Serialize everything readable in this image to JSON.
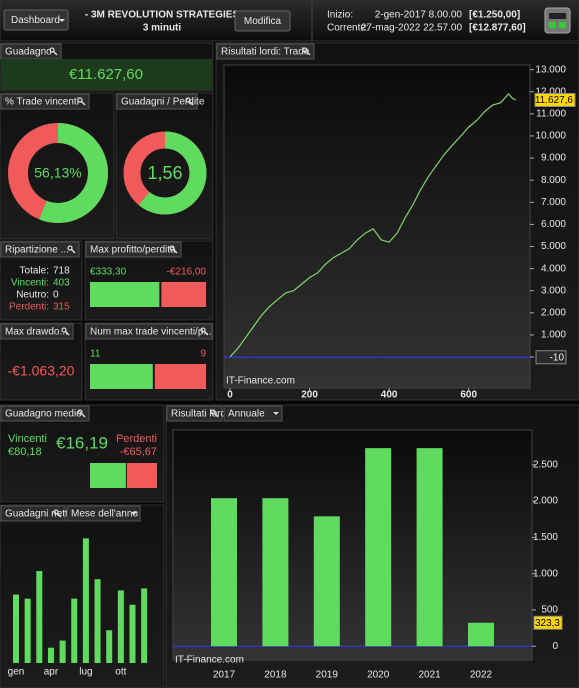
{
  "header": {
    "dashboard_button": "Dashboard",
    "strategy_name": "- 3M  REVOLUTION STRATEGIES",
    "timeframe": "3 minuti",
    "edit_button": "Modifica",
    "start_label": "Inizio:",
    "start_date": "2-gen-2017 8.00.00",
    "start_value": "[€1.250,00]",
    "current_label": "Corrente:",
    "current_date": "27-mag-2022 22.57.00",
    "current_value": "[€12.877,60]"
  },
  "widgets": {
    "gain": {
      "title": "Guadagno",
      "value": "€11.627,60"
    },
    "win_rate": {
      "title": "% Trade vincenti",
      "label": "56,13%",
      "value": 56.13
    },
    "profit_ratio": {
      "title": "Guadagni / Perdite",
      "label": "1,56",
      "value": 1.56
    },
    "breakdown": {
      "title": "Ripartizione ...",
      "rows": [
        [
          "Totale:",
          "718"
        ],
        [
          "Vincenti:",
          "403"
        ],
        [
          "Neutro:",
          "0"
        ],
        [
          "Perdenti:",
          "315"
        ]
      ]
    },
    "max_trade": {
      "title": "Max profitto/perdita",
      "win": 333.3,
      "win_label": "€333,30",
      "loss": -216,
      "loss_label": "-€216,00"
    },
    "drawdown": {
      "title": "Max drawdo...",
      "value": "-€1.063,20"
    },
    "streak": {
      "title": "Num max trade vincenti/p...",
      "win": 11,
      "loss": 9
    },
    "average": {
      "title": "Guadagno medio",
      "win_caption": "Vincenti",
      "win": 80.18,
      "win_label": "€80,18",
      "net": "€16,19",
      "loss_caption": "Perdenti",
      "loss": -65.67,
      "loss_label": "-€65,67"
    }
  },
  "chart_data": [
    {
      "type": "line",
      "title": "Risultati lordi: Trade",
      "watermark": "IT-Finance.com",
      "color": "#7fd66a",
      "x": [
        0,
        20,
        40,
        60,
        80,
        100,
        120,
        140,
        160,
        180,
        200,
        220,
        240,
        260,
        280,
        300,
        320,
        340,
        360,
        380,
        400,
        420,
        440,
        460,
        480,
        500,
        520,
        540,
        560,
        580,
        600,
        620,
        640,
        660,
        680,
        700,
        710,
        718
      ],
      "values": [
        0,
        400,
        900,
        1400,
        1900,
        2300,
        2600,
        2900,
        3000,
        3300,
        3600,
        3800,
        4200,
        4500,
        4700,
        4900,
        5300,
        5600,
        5800,
        5300,
        5200,
        5600,
        6300,
        6900,
        7600,
        8200,
        8700,
        9200,
        9600,
        10000,
        10400,
        10700,
        11100,
        11400,
        11500,
        11900,
        11700,
        11627.6
      ],
      "last_value_label": "11.627,6",
      "reference_line": -10,
      "xlim": [
        -15,
        754
      ],
      "xticks": [
        0,
        200,
        400,
        600
      ],
      "ylim": [
        -1400,
        13210
      ],
      "yticks": [
        0,
        {
          "value": 1000,
          "label": "1.000"
        },
        {
          "value": 2000,
          "label": "2.000"
        },
        {
          "value": 3000,
          "label": "3.000"
        },
        {
          "value": 4000,
          "label": "4.000"
        },
        {
          "value": 5000,
          "label": "5.000"
        },
        {
          "value": 6000,
          "label": "6.000"
        },
        {
          "value": 7000,
          "label": "7.000"
        },
        {
          "value": 8000,
          "label": "8.000"
        },
        {
          "value": 9000,
          "label": "9.000"
        },
        {
          "value": 10000,
          "label": "10.000"
        },
        {
          "value": 11000,
          "label": "11.000"
        },
        {
          "value": 12000,
          "label": "12.000"
        },
        {
          "value": 13000,
          "label": "13.000"
        }
      ]
    },
    {
      "type": "bar",
      "title": "Risultati lordi",
      "period": "Annuale",
      "watermark": "IT-Finance.com",
      "color": "#5fdc5f",
      "categories": [
        "2017",
        "2018",
        "2019",
        "2020",
        "2021",
        "2022"
      ],
      "values": [
        2040,
        2040,
        1790,
        2730,
        2730,
        323.3
      ],
      "value_labels": [
        null,
        null,
        null,
        null,
        null,
        "323,3"
      ],
      "ylim": [
        -190,
        2980
      ],
      "yticks": [
        0,
        500,
        {
          "value": 1000,
          "label": "1.000"
        },
        {
          "value": 1500,
          "label": "1.500"
        },
        {
          "value": 2000,
          "label": "2.000"
        },
        {
          "value": 2500,
          "label": "2.500"
        }
      ]
    },
    {
      "type": "bar",
      "title": "Guadagni netti",
      "period": "Mese dell'anno",
      "color": "#5fdc5f",
      "categories": [
        "gen",
        null,
        null,
        "apr",
        null,
        null,
        "lug",
        null,
        null,
        "ott",
        null,
        null
      ],
      "values": [
        1029,
        968,
        1382,
        230,
        338,
        968,
        1874,
        1260,
        492,
        1091,
        876,
        1121
      ],
      "ylim": [
        0,
        2120
      ]
    }
  ]
}
